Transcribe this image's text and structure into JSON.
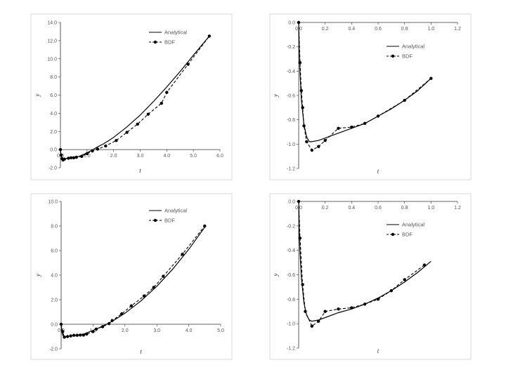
{
  "chart_data": [
    {
      "type": "line",
      "xlabel": "t",
      "ylabel": "y",
      "xlim": [
        0,
        6
      ],
      "ylim": [
        -2,
        14
      ],
      "xticks": [
        "0.0",
        "1.0",
        "2.0",
        "3.0",
        "4.0",
        "5.0",
        "6.0"
      ],
      "yticks": [
        "-2.0",
        "0.0",
        "2.0",
        "4.0",
        "6.0",
        "8.0",
        "10.0",
        "12.0",
        "14.0"
      ],
      "x_axis_at": 0,
      "grid": false,
      "legend": "top-right",
      "series": [
        {
          "name": "Analytical",
          "style": "solid",
          "x": [
            0,
            0.02,
            0.05,
            0.1,
            0.2,
            0.35,
            0.5,
            0.7,
            0.9,
            1.0,
            1.2,
            1.4,
            1.6,
            1.8,
            2.0,
            2.5,
            3.0,
            3.5,
            4.0,
            4.5,
            5.0,
            5.6
          ],
          "y": [
            0,
            -0.6,
            -0.9,
            -1.0,
            -1.0,
            -0.9,
            -0.85,
            -0.75,
            -0.5,
            -0.35,
            -0.05,
            0.3,
            0.6,
            0.95,
            1.35,
            2.5,
            3.8,
            5.3,
            6.9,
            8.6,
            10.4,
            12.5
          ]
        },
        {
          "name": "BDF",
          "style": "dashed",
          "x": [
            0,
            0.03,
            0.06,
            0.1,
            0.15,
            0.3,
            0.4,
            0.5,
            0.6,
            0.8,
            1.0,
            1.2,
            1.4,
            1.7,
            2.1,
            2.5,
            2.9,
            3.3,
            3.8,
            4.0,
            4.8,
            5.6
          ],
          "y": [
            0,
            -0.6,
            -1.0,
            -1.15,
            -1.05,
            -0.95,
            -0.9,
            -0.9,
            -0.85,
            -0.75,
            -0.45,
            -0.15,
            0.05,
            0.4,
            1.0,
            1.9,
            2.8,
            3.9,
            5.1,
            6.3,
            9.4,
            12.5
          ]
        }
      ]
    },
    {
      "type": "line",
      "xlabel": "t",
      "ylabel": "y",
      "xlim": [
        0,
        1.2
      ],
      "ylim": [
        -1.2,
        0
      ],
      "xticks": [
        "0.0",
        "0.2",
        "0.4",
        "0.6",
        "0.8",
        "1.0",
        "1.2"
      ],
      "yticks": [
        "0.0",
        "-0.2",
        "-0.4",
        "-0.6",
        "-0.8",
        "-1.0",
        "-1.2"
      ],
      "x_axis_at": 0,
      "grid": false,
      "legend": "top-right",
      "series": [
        {
          "name": "Analytical",
          "style": "solid",
          "x": [
            0,
            0.005,
            0.01,
            0.02,
            0.04,
            0.06,
            0.08,
            0.1,
            0.15,
            0.2,
            0.3,
            0.4,
            0.5,
            0.6,
            0.7,
            0.8,
            0.9,
            1.0
          ],
          "y": [
            0,
            -0.25,
            -0.42,
            -0.63,
            -0.84,
            -0.94,
            -0.98,
            -0.98,
            -0.97,
            -0.95,
            -0.91,
            -0.87,
            -0.83,
            -0.77,
            -0.71,
            -0.64,
            -0.56,
            -0.46
          ]
        },
        {
          "name": "BDF",
          "style": "dashed",
          "x": [
            0,
            0.01,
            0.02,
            0.03,
            0.04,
            0.06,
            0.1,
            0.15,
            0.2,
            0.3,
            0.4,
            0.5,
            0.6,
            0.8,
            1.0
          ],
          "y": [
            0,
            -0.33,
            -0.56,
            -0.7,
            -0.85,
            -0.98,
            -1.05,
            -1.02,
            -0.97,
            -0.87,
            -0.86,
            -0.83,
            -0.77,
            -0.64,
            -0.46
          ]
        }
      ]
    },
    {
      "type": "line",
      "xlabel": "t",
      "ylabel": "y",
      "xlim": [
        0,
        5
      ],
      "ylim": [
        -2,
        10
      ],
      "xticks": [
        "0.0",
        "1.0",
        "2.0",
        "3.0",
        "4.0",
        "5.0"
      ],
      "yticks": [
        "-2.0",
        "0.0",
        "2.0",
        "4.0",
        "6.0",
        "8.0",
        "10.0"
      ],
      "x_axis_at": 0,
      "grid": false,
      "legend": "top-right",
      "series": [
        {
          "name": "Analytical",
          "style": "solid",
          "x": [
            0,
            0.02,
            0.05,
            0.1,
            0.2,
            0.3,
            0.5,
            0.7,
            0.9,
            1.1,
            1.3,
            1.5,
            1.7,
            2.0,
            2.5,
            3.0,
            3.5,
            4.0,
            4.5
          ],
          "y": [
            0,
            -0.6,
            -0.9,
            -1.0,
            -1.0,
            -0.95,
            -0.88,
            -0.8,
            -0.6,
            -0.4,
            -0.15,
            0.1,
            0.4,
            0.9,
            1.9,
            3.1,
            4.5,
            6.1,
            7.9
          ]
        },
        {
          "name": "BDF",
          "style": "dashed",
          "x": [
            0,
            0.05,
            0.1,
            0.2,
            0.3,
            0.4,
            0.5,
            0.6,
            0.7,
            0.8,
            1.0,
            1.1,
            1.3,
            1.5,
            1.6,
            1.9,
            2.2,
            2.6,
            2.9,
            3.2,
            3.8,
            4.5
          ],
          "y": [
            0,
            -0.6,
            -1.05,
            -1.0,
            -0.95,
            -0.9,
            -0.9,
            -0.88,
            -0.88,
            -0.8,
            -0.6,
            -0.4,
            -0.2,
            0.05,
            0.3,
            0.85,
            1.5,
            2.3,
            3.0,
            3.9,
            5.7,
            8.0
          ]
        }
      ]
    },
    {
      "type": "line",
      "xlabel": "t",
      "ylabel": "y",
      "xlim": [
        0,
        1.2
      ],
      "ylim": [
        -1.2,
        0
      ],
      "xticks": [
        "0.0",
        "0.2",
        "0.4",
        "0.6",
        "0.8",
        "1.0",
        "1.2"
      ],
      "yticks": [
        "0.0",
        "-0.2",
        "-0.4",
        "-0.6",
        "-0.8",
        "-1.0",
        "-1.2"
      ],
      "x_axis_at": 0,
      "grid": false,
      "legend": "top-right",
      "series": [
        {
          "name": "Analytical",
          "style": "solid",
          "x": [
            0,
            0.005,
            0.01,
            0.02,
            0.04,
            0.06,
            0.08,
            0.1,
            0.15,
            0.2,
            0.3,
            0.4,
            0.5,
            0.6,
            0.7,
            0.8,
            0.9,
            1.0
          ],
          "y": [
            0,
            -0.25,
            -0.42,
            -0.62,
            -0.83,
            -0.93,
            -0.97,
            -0.98,
            -0.97,
            -0.95,
            -0.91,
            -0.88,
            -0.84,
            -0.79,
            -0.73,
            -0.66,
            -0.58,
            -0.49
          ]
        },
        {
          "name": "BDF",
          "style": "dashed",
          "x": [
            0,
            0.01,
            0.03,
            0.05,
            0.1,
            0.15,
            0.2,
            0.3,
            0.4,
            0.5,
            0.6,
            0.7,
            0.8,
            0.95
          ],
          "y": [
            0,
            -0.3,
            -0.68,
            -0.9,
            -1.02,
            -0.98,
            -0.9,
            -0.88,
            -0.87,
            -0.84,
            -0.8,
            -0.73,
            -0.64,
            -0.52
          ]
        }
      ]
    }
  ]
}
